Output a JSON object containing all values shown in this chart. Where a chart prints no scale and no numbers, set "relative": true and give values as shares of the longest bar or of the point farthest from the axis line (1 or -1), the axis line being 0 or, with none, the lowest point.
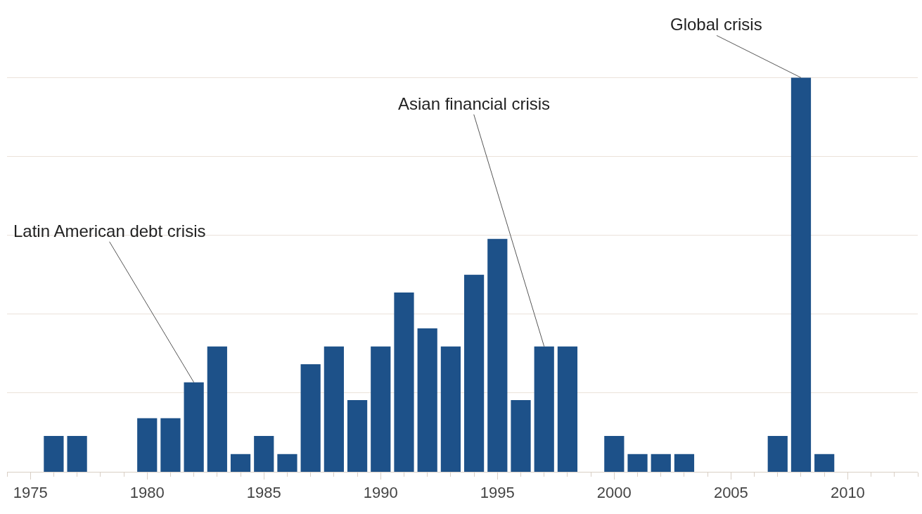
{
  "chart_data": {
    "type": "bar",
    "relative": true,
    "color": "#1d5189",
    "x": [
      1976,
      1977,
      1978,
      1979,
      1980,
      1981,
      1982,
      1983,
      1984,
      1985,
      1986,
      1987,
      1988,
      1989,
      1990,
      1991,
      1992,
      1993,
      1994,
      1995,
      1996,
      1997,
      1998,
      1999,
      2000,
      2001,
      2002,
      2003,
      2004,
      2005,
      2006,
      2007,
      2008,
      2009
    ],
    "values": [
      0.091,
      0.091,
      0,
      0,
      0.136,
      0.136,
      0.227,
      0.318,
      0.045,
      0.091,
      0.045,
      0.273,
      0.318,
      0.182,
      0.318,
      0.455,
      0.364,
      0.318,
      0.5,
      0.591,
      0.182,
      0.318,
      0.318,
      0,
      0.091,
      0.045,
      0.045,
      0.045,
      0,
      0,
      0,
      0.091,
      1,
      0.045
    ],
    "xlim": [
      1974,
      2013
    ],
    "xticks": [
      1975,
      1980,
      1985,
      1990,
      1995,
      2000,
      2005,
      2010
    ],
    "grid": "y",
    "annotations": [
      {
        "text": "Latin American debt crisis",
        "x": 1982,
        "y": 0.227
      },
      {
        "text": "Asian financial crisis",
        "x": 1997,
        "y": 0.318
      },
      {
        "text": "Global crisis",
        "x": 2008,
        "y": 1
      }
    ]
  }
}
